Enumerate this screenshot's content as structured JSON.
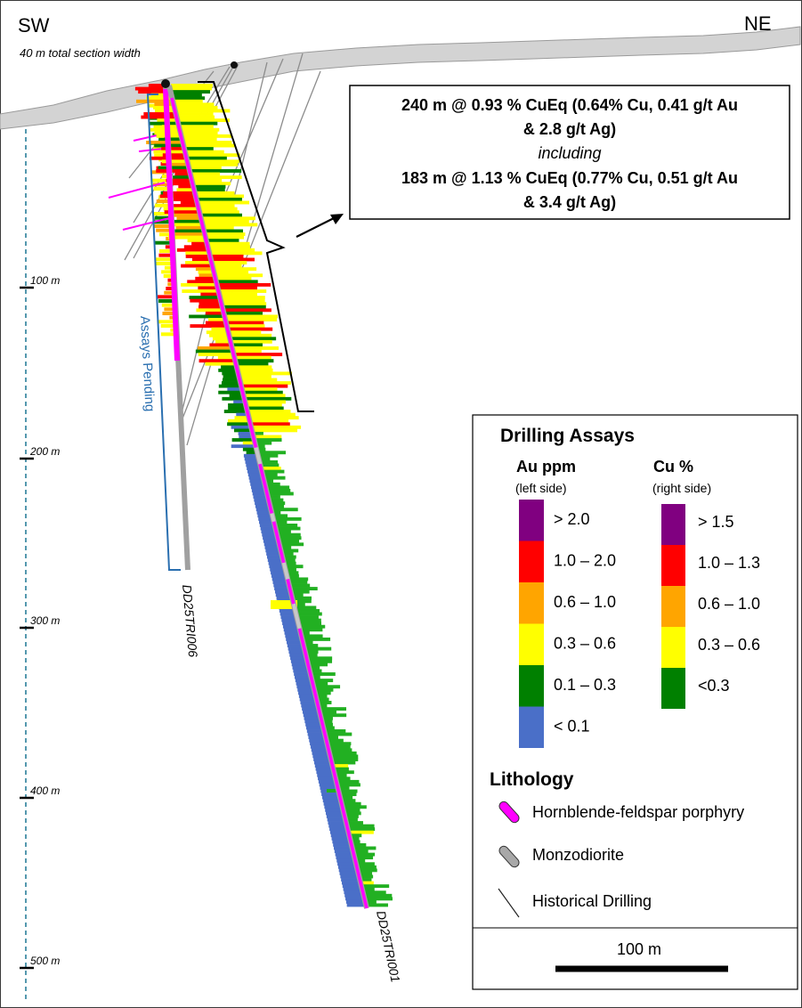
{
  "header": {
    "left_direction": "SW",
    "right_direction": "NE",
    "section_width_note": "40 m total section width"
  },
  "depth_scale": {
    "ticks": [
      "100 m",
      "200 m",
      "300 m",
      "400 m",
      "500 m"
    ]
  },
  "drillholes": {
    "hole_a": "DD25TRI006",
    "hole_b": "DD25TRI001",
    "pending_label": "Assays Pending"
  },
  "intercept_box": {
    "line1": "240 m @ 0.93 % CuEq (0.64% Cu, 0.41 g/t Au",
    "line2": "& 2.8 g/t Ag)",
    "line3": "including",
    "line4": "183 m @ 1.13 % CuEq (0.77% Cu, 0.51 g/t Au",
    "line5": "& 3.4 g/t Ag)"
  },
  "legend": {
    "title": "Drilling Assays",
    "au_header": "Au ppm",
    "au_sub": "(left side)",
    "cu_header": "Cu %",
    "cu_sub": "(right side)",
    "au_bins": [
      {
        "label": "> 2.0",
        "color": "#800080"
      },
      {
        "label": "1.0 – 2.0",
        "color": "#ff0000"
      },
      {
        "label": "0.6 – 1.0",
        "color": "#ffa500"
      },
      {
        "label": "0.3 – 0.6",
        "color": "#ffff00"
      },
      {
        "label": "0.1 – 0.3",
        "color": "#008000"
      },
      {
        "label": "< 0.1",
        "color": "#4a6fc8"
      }
    ],
    "cu_bins": [
      {
        "label": "> 1.5",
        "color": "#800080"
      },
      {
        "label": "1.0 – 1.3",
        "color": "#ff0000"
      },
      {
        "label": "0.6 – 1.0",
        "color": "#ffa500"
      },
      {
        "label": "0.3 – 0.6",
        "color": "#ffff00"
      },
      {
        "label": "<0.3",
        "color": "#008000"
      }
    ],
    "lithology_title": "Lithology",
    "lithology": [
      {
        "label": "Hornblende-feldspar porphyry",
        "icon": "magenta-cylinder"
      },
      {
        "label": "Monzodiorite",
        "icon": "grey-cylinder"
      },
      {
        "label": "Historical Drilling",
        "icon": "thin-line"
      }
    ],
    "scale_label": "100 m"
  },
  "colors": {
    "purple": "#800080",
    "red": "#ff0000",
    "orange": "#ffa500",
    "yellow": "#ffff00",
    "green": "#008000",
    "blue": "#4a6fc8",
    "light_green": "#22b022",
    "magenta": "#ff00ff",
    "grey": "#a0a0a0",
    "topo": "#cfcfcf",
    "scale_dash": "#2a7f9a",
    "pending": "#2a6fb0"
  }
}
